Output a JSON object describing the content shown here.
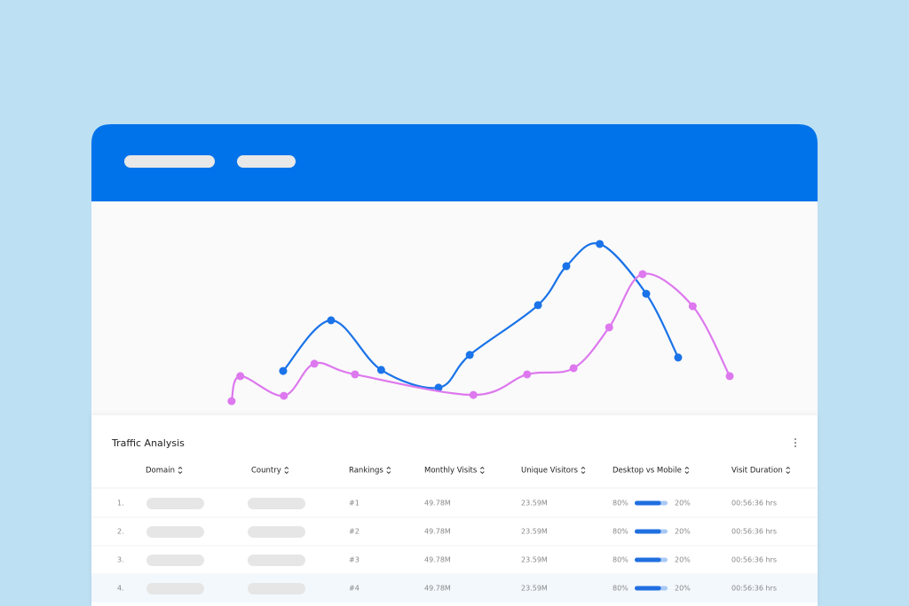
{
  "chart": {
    "type": "line",
    "xlim": [
      0,
      100
    ],
    "ylim": [
      0,
      100
    ],
    "series": [
      {
        "color": "#1a73e8",
        "x": [
          26.4,
          33.0,
          39.9,
          47.8,
          52.1,
          61.5,
          65.4,
          70.0,
          76.4,
          80.8
        ],
        "values": [
          20.7,
          44.4,
          21.2,
          12.9,
          28.2,
          51.5,
          69.7,
          80.1,
          56.8,
          27.0
        ]
      },
      {
        "color": "#dd78ee",
        "x": [
          19.3,
          20.5,
          26.5,
          30.7,
          36.3,
          52.6,
          60.0,
          66.4,
          71.3,
          75.9,
          82.8,
          87.9
        ],
        "values": [
          6.6,
          18.3,
          9.1,
          24.1,
          19.1,
          9.5,
          19.1,
          22.0,
          41.1,
          66.0,
          51.0,
          18.3
        ]
      }
    ]
  },
  "table": {
    "title": "Traffic Analysis",
    "columns": [
      "Domain",
      "Country",
      "Rankings",
      "Monthly Visits",
      "Unique Visitors",
      "Desktop vs Mobile",
      "Visit Duration"
    ],
    "rows": [
      {
        "index": "1.",
        "ranking": "#1",
        "monthly_visits": "49.78M",
        "unique_visitors": "23.59M",
        "desktop": {
          "value": 80,
          "label": "80%"
        },
        "mobile": {
          "value": 20,
          "label": "20%"
        },
        "visit_duration": "00:56:36 hrs"
      },
      {
        "index": "2.",
        "ranking": "#2",
        "monthly_visits": "49.78M",
        "unique_visitors": "23.59M",
        "desktop": {
          "value": 80,
          "label": "80%"
        },
        "mobile": {
          "value": 20,
          "label": "20%"
        },
        "visit_duration": "00:56:36 hrs"
      },
      {
        "index": "3.",
        "ranking": "#3",
        "monthly_visits": "49.78M",
        "unique_visitors": "23.59M",
        "desktop": {
          "value": 80,
          "label": "80%"
        },
        "mobile": {
          "value": 20,
          "label": "20%"
        },
        "visit_duration": "00:56:36 hrs"
      },
      {
        "index": "4.",
        "ranking": "#4",
        "monthly_visits": "49.78M",
        "unique_visitors": "23.59M",
        "desktop": {
          "value": 80,
          "label": "80%"
        },
        "mobile": {
          "value": 20,
          "label": "20%"
        },
        "visit_duration": "00:56:36 hrs"
      }
    ]
  }
}
